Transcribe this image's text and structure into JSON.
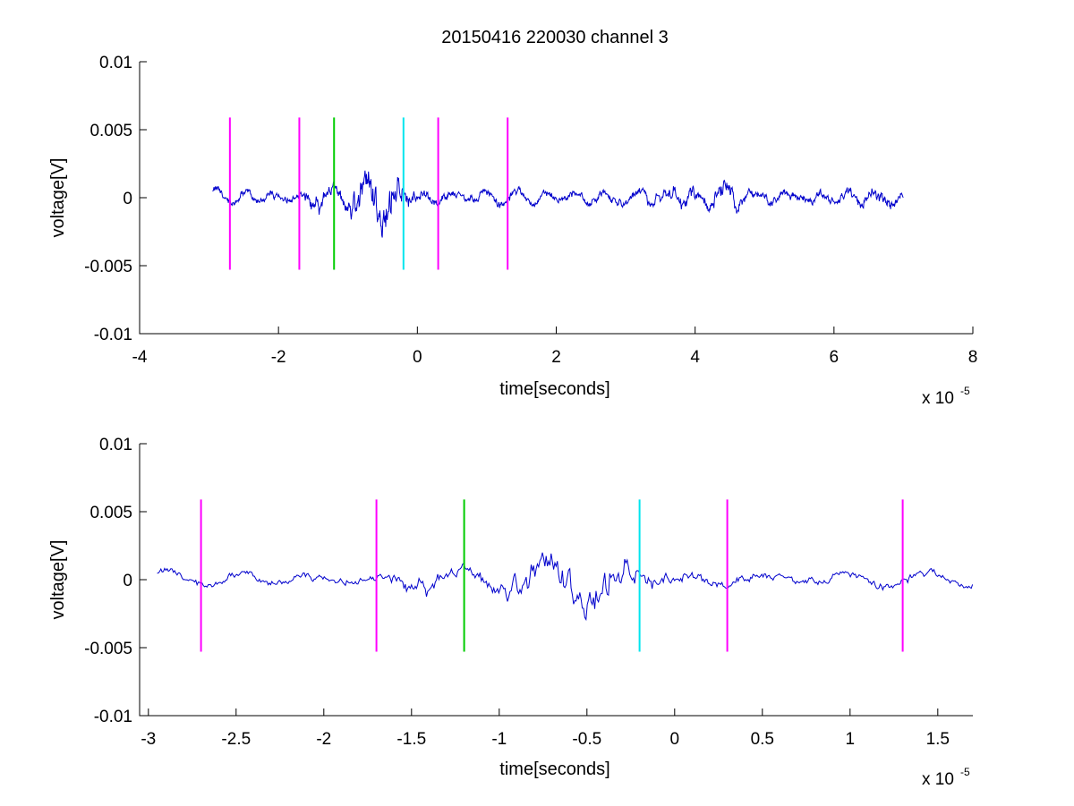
{
  "title": "20150416 220030 channel 3",
  "chart_data": [
    {
      "type": "line",
      "xlabel": "time[seconds]",
      "ylabel": "voltage[V]",
      "x_multiplier": "x 10",
      "x_multiplier_exponent": "-5",
      "xlim": [
        -4,
        8
      ],
      "ylim": [
        -0.01,
        0.01
      ],
      "x_ticks": [
        -4,
        -2,
        0,
        2,
        4,
        6,
        8
      ],
      "x_tick_labels": [
        "-4",
        "-2",
        "0",
        "2",
        "4",
        "6",
        "8"
      ],
      "y_ticks": [
        0.01,
        0.005,
        0,
        -0.005,
        -0.01
      ],
      "y_tick_labels": [
        "0.01",
        "0.005",
        "0",
        "-0.005",
        "-0.01"
      ],
      "grid": false,
      "signal": {
        "color": "#0000cc",
        "x_start": -2.95,
        "x_end": 7.0
      },
      "markers": [
        {
          "x": -2.7,
          "color": "#ff00ff",
          "y_range": [
            -0.0053,
            0.0059
          ]
        },
        {
          "x": -1.7,
          "color": "#ff00ff",
          "y_range": [
            -0.0053,
            0.0059
          ]
        },
        {
          "x": -1.2,
          "color": "#00cc00",
          "y_range": [
            -0.0053,
            0.0059
          ]
        },
        {
          "x": -0.2,
          "color": "#00e5ee",
          "y_range": [
            -0.0053,
            0.0059
          ]
        },
        {
          "x": 0.3,
          "color": "#ff00ff",
          "y_range": [
            -0.0053,
            0.0059
          ]
        },
        {
          "x": 1.3,
          "color": "#ff00ff",
          "y_range": [
            -0.0053,
            0.0059
          ]
        }
      ]
    },
    {
      "type": "line",
      "xlabel": "time[seconds]",
      "ylabel": "voltage[V]",
      "x_multiplier": "x 10",
      "x_multiplier_exponent": "-5",
      "xlim": [
        -3.05,
        1.7
      ],
      "ylim": [
        -0.01,
        0.01
      ],
      "x_ticks": [
        -3,
        -2.5,
        -2,
        -1.5,
        -1,
        -0.5,
        0,
        0.5,
        1,
        1.5
      ],
      "x_tick_labels": [
        "-3",
        "-2.5",
        "-2",
        "-1.5",
        "-1",
        "-0.5",
        "0",
        "0.5",
        "1",
        "1.5"
      ],
      "y_ticks": [
        0.01,
        0.005,
        0,
        -0.005,
        -0.01
      ],
      "y_tick_labels": [
        "0.01",
        "0.005",
        "0",
        "-0.005",
        "-0.01"
      ],
      "grid": false,
      "signal": {
        "color": "#0000cc",
        "x_start": -2.95,
        "x_end": 1.7
      },
      "markers": [
        {
          "x": -2.7,
          "color": "#ff00ff",
          "y_range": [
            -0.0053,
            0.0059
          ]
        },
        {
          "x": -1.7,
          "color": "#ff00ff",
          "y_range": [
            -0.0053,
            0.0059
          ]
        },
        {
          "x": -1.2,
          "color": "#00cc00",
          "y_range": [
            -0.0053,
            0.0059
          ]
        },
        {
          "x": -0.2,
          "color": "#00e5ee",
          "y_range": [
            -0.0053,
            0.0059
          ]
        },
        {
          "x": 0.3,
          "color": "#ff00ff",
          "y_range": [
            -0.0053,
            0.0059
          ]
        },
        {
          "x": 1.3,
          "color": "#ff00ff",
          "y_range": [
            -0.0053,
            0.0059
          ]
        }
      ]
    }
  ]
}
